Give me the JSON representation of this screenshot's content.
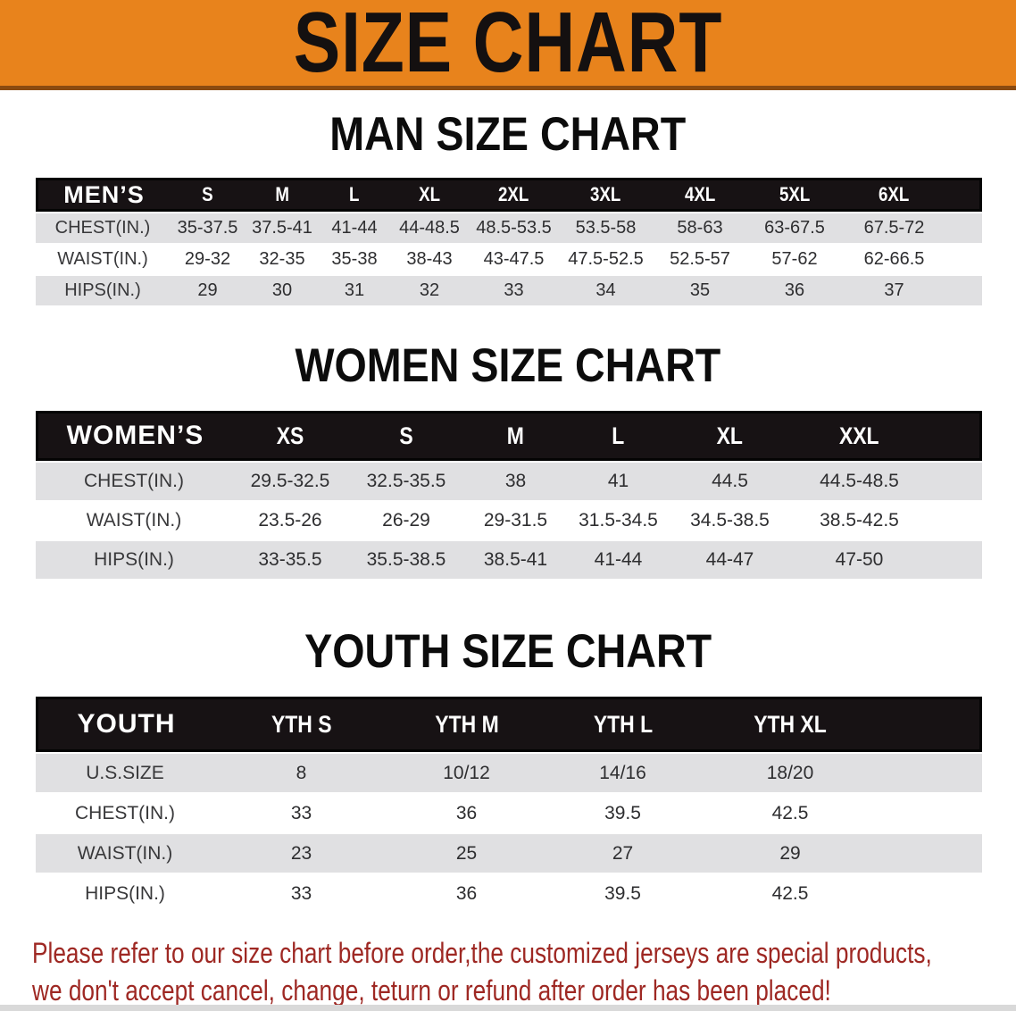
{
  "banner": {
    "title": "SIZE CHART"
  },
  "colors": {
    "banner_orange": "#e8831c",
    "banner_edge_brown": "#8a4a10",
    "header_bar_black": "#171214",
    "row_gray": "#e0e0e2",
    "row_white": "#ffffff",
    "disclaimer_red": "#9e2823"
  },
  "sections": [
    {
      "title": "MAN SIZE CHART",
      "table": {
        "corner_label": "MEN’S",
        "columns": [
          "S",
          "M",
          "L",
          "XL",
          "2XL",
          "3XL",
          "4XL",
          "5XL",
          "6XL"
        ],
        "rows": [
          {
            "label": "CHEST(IN.)",
            "values": [
              "35-37.5",
              "37.5-41",
              "41-44",
              "44-48.5",
              "48.5-53.5",
              "53.5-58",
              "58-63",
              "63-67.5",
              "67.5-72"
            ]
          },
          {
            "label": "WAIST(IN.)",
            "values": [
              "29-32",
              "32-35",
              "35-38",
              "38-43",
              "43-47.5",
              "47.5-52.5",
              "52.5-57",
              "57-62",
              "62-66.5"
            ]
          },
          {
            "label": "HIPS(IN.)",
            "values": [
              "29",
              "30",
              "31",
              "32",
              "33",
              "34",
              "35",
              "36",
              "37"
            ]
          }
        ]
      }
    },
    {
      "title": "WOMEN SIZE CHART",
      "table": {
        "corner_label": "WOMEN’S",
        "columns": [
          "XS",
          "S",
          "M",
          "L",
          "XL",
          "XXL"
        ],
        "rows": [
          {
            "label": "CHEST(IN.)",
            "values": [
              "29.5-32.5",
              "32.5-35.5",
              "38",
              "41",
              "44.5",
              "44.5-48.5"
            ]
          },
          {
            "label": "WAIST(IN.)",
            "values": [
              "23.5-26",
              "26-29",
              "29-31.5",
              "31.5-34.5",
              "34.5-38.5",
              "38.5-42.5"
            ]
          },
          {
            "label": "HIPS(IN.)",
            "values": [
              "33-35.5",
              "35.5-38.5",
              "38.5-41",
              "41-44",
              "44-47",
              "47-50"
            ]
          }
        ]
      }
    },
    {
      "title": "YOUTH SIZE CHART",
      "table": {
        "corner_label": "YOUTH",
        "columns": [
          "YTH S",
          "YTH M",
          "YTH L",
          "YTH XL"
        ],
        "rows": [
          {
            "label": "U.S.SIZE",
            "values": [
              "8",
              "10/12",
              "14/16",
              "18/20"
            ]
          },
          {
            "label": "CHEST(IN.)",
            "values": [
              "33",
              "36",
              "39.5",
              "42.5"
            ]
          },
          {
            "label": "WAIST(IN.)",
            "values": [
              "23",
              "25",
              "27",
              "29"
            ]
          },
          {
            "label": "HIPS(IN.)",
            "values": [
              "33",
              "36",
              "39.5",
              "42.5"
            ]
          }
        ]
      }
    }
  ],
  "disclaimer": {
    "line1": "Please refer to our size chart before order,the customized jerseys are special products,",
    "line2": "we don't accept cancel, change, teturn or refund after order has been placed!"
  }
}
